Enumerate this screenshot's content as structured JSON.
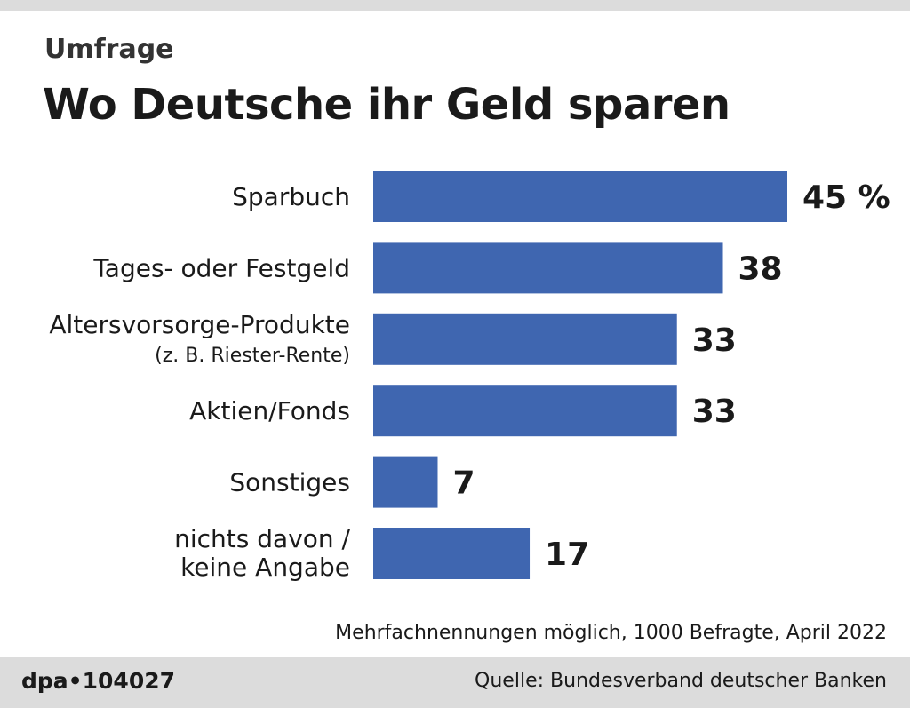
{
  "kicker": "Umfrage",
  "title": "Wo Deutsche ihr Geld sparen",
  "note": "Mehrfachnennungen möglich, 1000 Befragte, April 2022",
  "footer": {
    "agency_id": "dpa•104027",
    "source": "Quelle: Bundesverband deutscher Banken"
  },
  "colors": {
    "bar": "#3f66b0",
    "footer_band": "#dcdcdc"
  },
  "chart_data": {
    "type": "bar",
    "orientation": "horizontal",
    "unit": "%",
    "categories": [
      [
        "Sparbuch"
      ],
      [
        "Tages- oder Festgeld"
      ],
      [
        "Altersvorsorge-Produkte",
        "(z. B. Riester-Rente)"
      ],
      [
        "Aktien/Fonds"
      ],
      [
        "Sonstiges"
      ],
      [
        "nichts davon /",
        "keine Angabe"
      ]
    ],
    "values": [
      45,
      38,
      33,
      33,
      7,
      17
    ],
    "value_labels": [
      "45 %",
      "38",
      "33",
      "33",
      "7",
      "17"
    ],
    "xlim": [
      0,
      45
    ],
    "grid": false
  }
}
